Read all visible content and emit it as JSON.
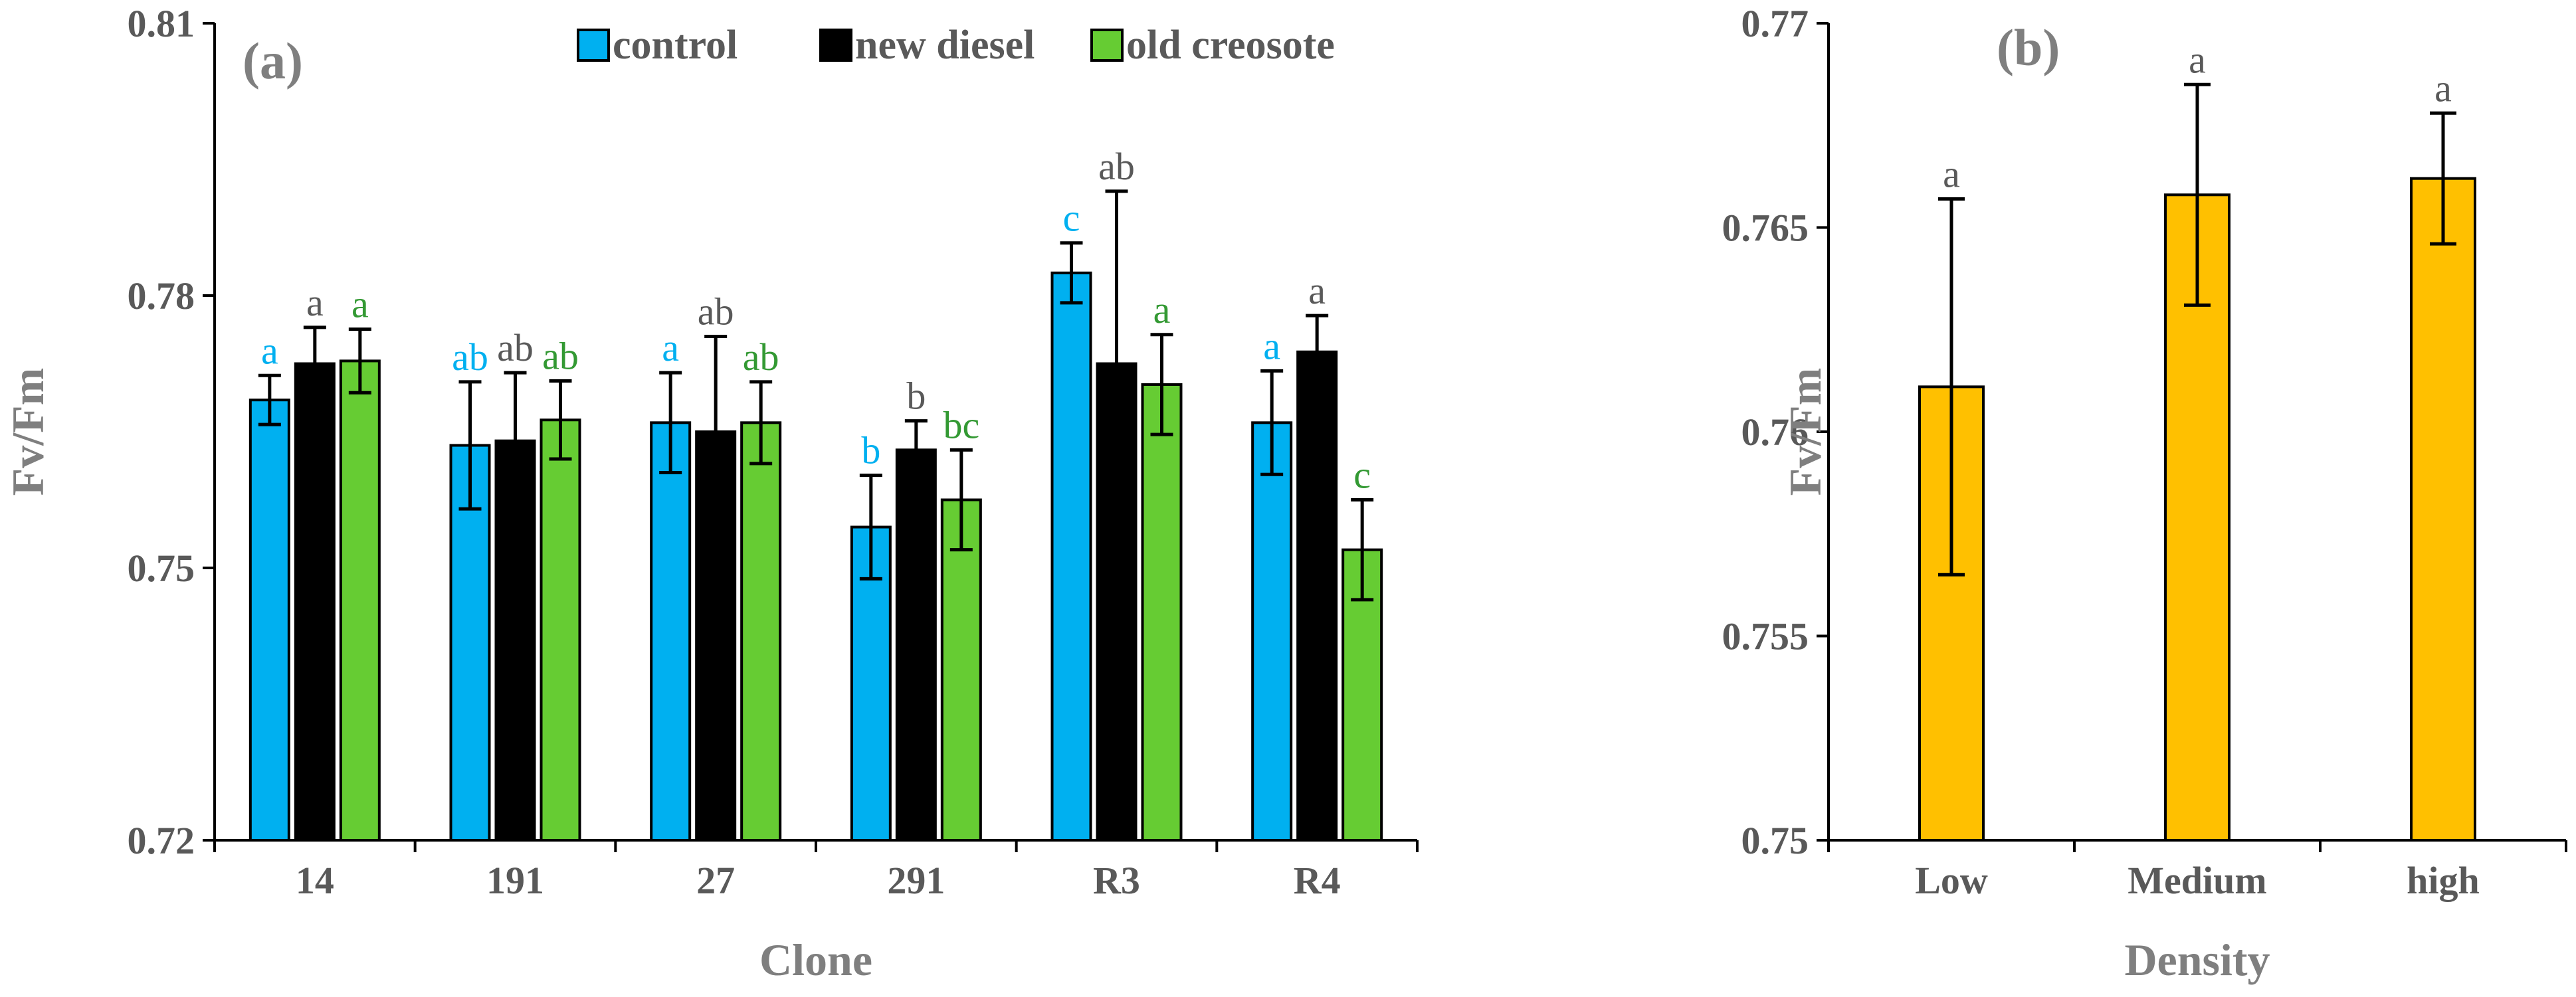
{
  "chart_data": [
    {
      "panel": "(a)",
      "type": "bar",
      "xlabel": "Clone",
      "ylabel": "Fv/Fm",
      "ylim": [
        0.72,
        0.81
      ],
      "yticks": [
        "0.72",
        "0.75",
        "0.78",
        "0.81"
      ],
      "ytick_values": [
        0.72,
        0.75,
        0.78,
        0.81
      ],
      "categories": [
        "14",
        "191",
        "27",
        "291",
        "R3",
        "R4"
      ],
      "legend_position": "top",
      "series": [
        {
          "name": "control",
          "color": "#00b0f0",
          "label_color": "#00b0f0",
          "values": [
            0.7685,
            0.7635,
            0.766,
            0.7545,
            0.7825,
            0.766
          ],
          "errors": [
            0.0027,
            0.007,
            0.0055,
            0.0057,
            0.0033,
            0.0057
          ],
          "labels": [
            "a",
            "ab",
            "a",
            "b",
            "c",
            "a"
          ]
        },
        {
          "name": "new diesel",
          "color": "#000000",
          "label_color": "#595959",
          "values": [
            0.7725,
            0.764,
            0.765,
            0.763,
            0.7725,
            0.7738
          ],
          "errors": [
            0.004,
            0.0075,
            0.0105,
            0.0032,
            0.019,
            0.004
          ],
          "labels": [
            "a",
            "ab",
            "ab",
            "b",
            "ab",
            "a"
          ]
        },
        {
          "name": "old creosote",
          "color": "#66cc33",
          "label_color": "#339933",
          "values": [
            0.7728,
            0.7663,
            0.766,
            0.7575,
            0.7702,
            0.752
          ],
          "errors": [
            0.0035,
            0.0043,
            0.0045,
            0.0055,
            0.0055,
            0.0055
          ],
          "labels": [
            "a",
            "ab",
            "ab",
            "bc",
            "a",
            "c"
          ]
        }
      ]
    },
    {
      "panel": "(b)",
      "type": "bar",
      "xlabel": "Density",
      "ylabel": "Fv/Fm",
      "ylim": [
        0.75,
        0.77
      ],
      "yticks": [
        "0.75",
        "0.755",
        "0.76",
        "0.765",
        "0.77"
      ],
      "ytick_values": [
        0.75,
        0.755,
        0.76,
        0.765,
        0.77
      ],
      "categories": [
        "Low",
        "Medium",
        "high"
      ],
      "series": [
        {
          "name": "",
          "color": "#ffc000",
          "label_color": "#595959",
          "values": [
            0.7611,
            0.7658,
            0.7662
          ],
          "errors": [
            0.0046,
            0.0027,
            0.0016
          ],
          "labels": [
            "a",
            "a",
            "a"
          ]
        }
      ]
    }
  ]
}
